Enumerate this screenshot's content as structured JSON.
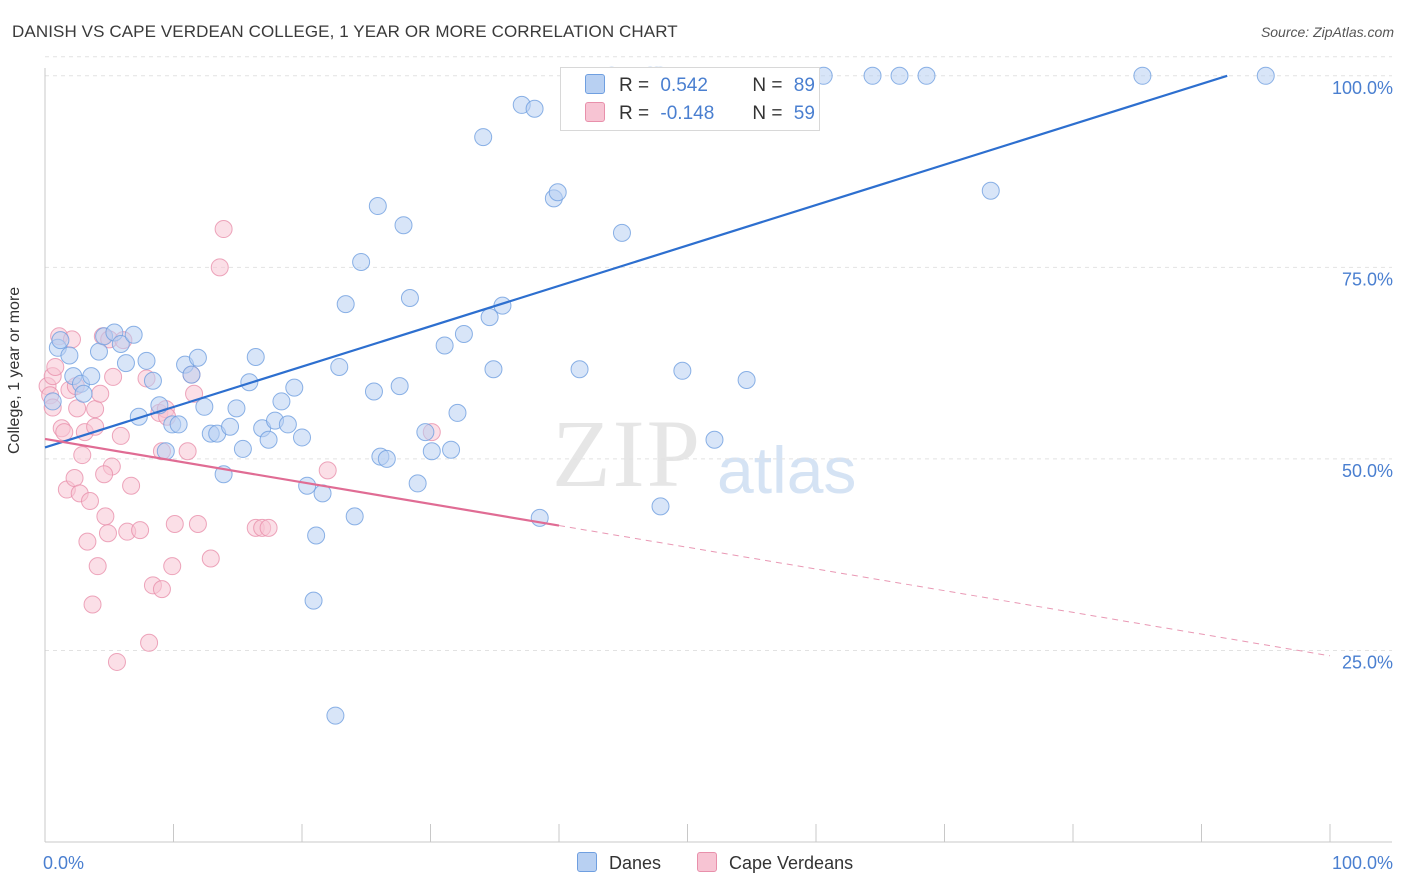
{
  "title": "DANISH VS CAPE VERDEAN COLLEGE, 1 YEAR OR MORE CORRELATION CHART",
  "source": "Source: ZipAtlas.com",
  "watermark": {
    "zip": "ZIP",
    "atlas": "atlas"
  },
  "legend": {
    "danes": {
      "r_label": "R =",
      "r_value": "0.542",
      "n_label": "N =",
      "n_value": "89"
    },
    "cape": {
      "r_label": "R =",
      "r_value": "-0.148",
      "n_label": "N =",
      "n_value": "59"
    }
  },
  "bottom_legend": {
    "danes": "Danes",
    "cape": "Cape Verdeans"
  },
  "colors": {
    "danes_fill": "#b8d0f2",
    "danes_stroke": "#6f9fe0",
    "danes_line": "#2d6fcf",
    "cape_fill": "#f7c4d3",
    "cape_stroke": "#e890ab",
    "cape_line": "#e06c94",
    "axis_label": "#4a7fd0",
    "grid": "#e2e2e2"
  },
  "chart_data": {
    "type": "scatter",
    "title": "DANISH VS CAPE VERDEAN COLLEGE, 1 YEAR OR MORE CORRELATION CHART",
    "xlabel": "",
    "ylabel": "College, 1 year or more",
    "xlim": [
      0,
      100
    ],
    "ylim": [
      0,
      101.8
    ],
    "x_tick_labels": [
      "0.0%",
      "100.0%"
    ],
    "y_ticks": [
      25,
      50,
      75,
      100
    ],
    "y_tick_labels": [
      "25.0%",
      "50.0%",
      "75.0%",
      "100.0%"
    ],
    "grid": true,
    "series": [
      {
        "name": "Danes",
        "points": [
          [
            0.6,
            57.5
          ],
          [
            1,
            64.5
          ],
          [
            1.2,
            65.5
          ],
          [
            1.9,
            63.5
          ],
          [
            2.2,
            60.8
          ],
          [
            2.8,
            59.8
          ],
          [
            3,
            58.5
          ],
          [
            3.6,
            60.8
          ],
          [
            4.2,
            64
          ],
          [
            4.6,
            66
          ],
          [
            5.4,
            66.5
          ],
          [
            5.9,
            65
          ],
          [
            6.3,
            62.5
          ],
          [
            6.9,
            66.2
          ],
          [
            7.3,
            55.5
          ],
          [
            7.9,
            62.8
          ],
          [
            8.4,
            60.2
          ],
          [
            8.9,
            57
          ],
          [
            9.4,
            51
          ],
          [
            9.9,
            54.5
          ],
          [
            10.4,
            54.5
          ],
          [
            10.9,
            62.3
          ],
          [
            11.4,
            61
          ],
          [
            11.9,
            63.2
          ],
          [
            12.4,
            56.8
          ],
          [
            12.9,
            53.3
          ],
          [
            13.4,
            53.3
          ],
          [
            13.9,
            48
          ],
          [
            14.4,
            54.2
          ],
          [
            14.9,
            56.6
          ],
          [
            15.4,
            51.3
          ],
          [
            15.9,
            60
          ],
          [
            16.4,
            63.3
          ],
          [
            16.9,
            54
          ],
          [
            17.4,
            52.5
          ],
          [
            17.9,
            55
          ],
          [
            18.4,
            57.5
          ],
          [
            18.9,
            54.5
          ],
          [
            19.4,
            59.3
          ],
          [
            20,
            52.8
          ],
          [
            20.4,
            46.5
          ],
          [
            21.1,
            40
          ],
          [
            21.6,
            45.5
          ],
          [
            20.9,
            31.5
          ],
          [
            22.6,
            16.5
          ],
          [
            22.9,
            62
          ],
          [
            23.4,
            70.2
          ],
          [
            24.1,
            42.5
          ],
          [
            24.6,
            75.7
          ],
          [
            25.6,
            58.8
          ],
          [
            26.1,
            50.3
          ],
          [
            26.6,
            50
          ],
          [
            25.9,
            83
          ],
          [
            27.6,
            59.5
          ],
          [
            27.9,
            80.5
          ],
          [
            28.4,
            71
          ],
          [
            29,
            46.8
          ],
          [
            29.6,
            53.5
          ],
          [
            30.1,
            51
          ],
          [
            31.1,
            64.8
          ],
          [
            31.6,
            51.2
          ],
          [
            32.1,
            56
          ],
          [
            32.6,
            66.3
          ],
          [
            34.1,
            92
          ],
          [
            34.6,
            68.5
          ],
          [
            34.9,
            61.7
          ],
          [
            35.6,
            70
          ],
          [
            37.1,
            96.2
          ],
          [
            38.1,
            95.7
          ],
          [
            38.5,
            42.3
          ],
          [
            39.6,
            84
          ],
          [
            39.9,
            84.8
          ],
          [
            41.6,
            61.7
          ],
          [
            44.1,
            100
          ],
          [
            44.9,
            79.5
          ],
          [
            47.1,
            100
          ],
          [
            47.6,
            100
          ],
          [
            47.9,
            100
          ],
          [
            47.9,
            43.8
          ],
          [
            49.6,
            61.5
          ],
          [
            52.1,
            52.5
          ],
          [
            54.6,
            60.3
          ],
          [
            60.6,
            100
          ],
          [
            64.4,
            100
          ],
          [
            66.5,
            100
          ],
          [
            68.6,
            100
          ],
          [
            73.6,
            85
          ],
          [
            85.4,
            100
          ],
          [
            95,
            100
          ]
        ],
        "regression": {
          "x": [
            0,
            92
          ],
          "y": [
            51.5,
            100
          ]
        }
      },
      {
        "name": "Cape Verdeans",
        "points": [
          [
            0.2,
            59.5
          ],
          [
            0.4,
            58.3
          ],
          [
            0.6,
            56.7
          ],
          [
            0.6,
            60.8
          ],
          [
            0.8,
            62
          ],
          [
            1.1,
            66
          ],
          [
            1.3,
            54
          ],
          [
            1.5,
            53.5
          ],
          [
            1.7,
            46
          ],
          [
            1.9,
            59
          ],
          [
            2.1,
            65.6
          ],
          [
            2.3,
            47.5
          ],
          [
            2.5,
            56.6
          ],
          [
            2.7,
            45.5
          ],
          [
            2.9,
            50.5
          ],
          [
            3.1,
            53.5
          ],
          [
            3.3,
            39.2
          ],
          [
            3.5,
            44.5
          ],
          [
            3.7,
            31
          ],
          [
            3.9,
            56.5
          ],
          [
            3.9,
            54.2
          ],
          [
            4.1,
            36
          ],
          [
            4.3,
            58.5
          ],
          [
            4.5,
            66
          ],
          [
            4.7,
            42.5
          ],
          [
            4.9,
            40.3
          ],
          [
            5,
            65.6
          ],
          [
            5.2,
            49
          ],
          [
            5.3,
            60.7
          ],
          [
            5.6,
            23.5
          ],
          [
            5.9,
            53
          ],
          [
            6.4,
            40.5
          ],
          [
            6.7,
            46.5
          ],
          [
            7.4,
            40.7
          ],
          [
            7.9,
            60.5
          ],
          [
            8.1,
            26
          ],
          [
            8.4,
            33.5
          ],
          [
            8.9,
            56
          ],
          [
            9.1,
            51
          ],
          [
            9.4,
            56.5
          ],
          [
            9.1,
            33
          ],
          [
            10.1,
            41.5
          ],
          [
            9.9,
            36
          ],
          [
            11.1,
            51
          ],
          [
            11.4,
            61
          ],
          [
            11.6,
            58.5
          ],
          [
            11.9,
            41.5
          ],
          [
            12.9,
            37
          ],
          [
            13.6,
            75
          ],
          [
            13.9,
            80
          ],
          [
            16.4,
            41
          ],
          [
            16.9,
            41
          ],
          [
            17.4,
            41
          ],
          [
            22,
            48.5
          ],
          [
            30.1,
            53.5
          ],
          [
            9.5,
            55.5
          ],
          [
            2.4,
            59.5
          ],
          [
            6.1,
            65.5
          ],
          [
            4.6,
            48
          ]
        ],
        "regression": {
          "x": [
            0,
            40
          ],
          "y": [
            52.6,
            41.3
          ]
        },
        "regression_dashed": {
          "x": [
            40,
            100
          ],
          "y": [
            41.3,
            24.3
          ]
        }
      }
    ]
  }
}
